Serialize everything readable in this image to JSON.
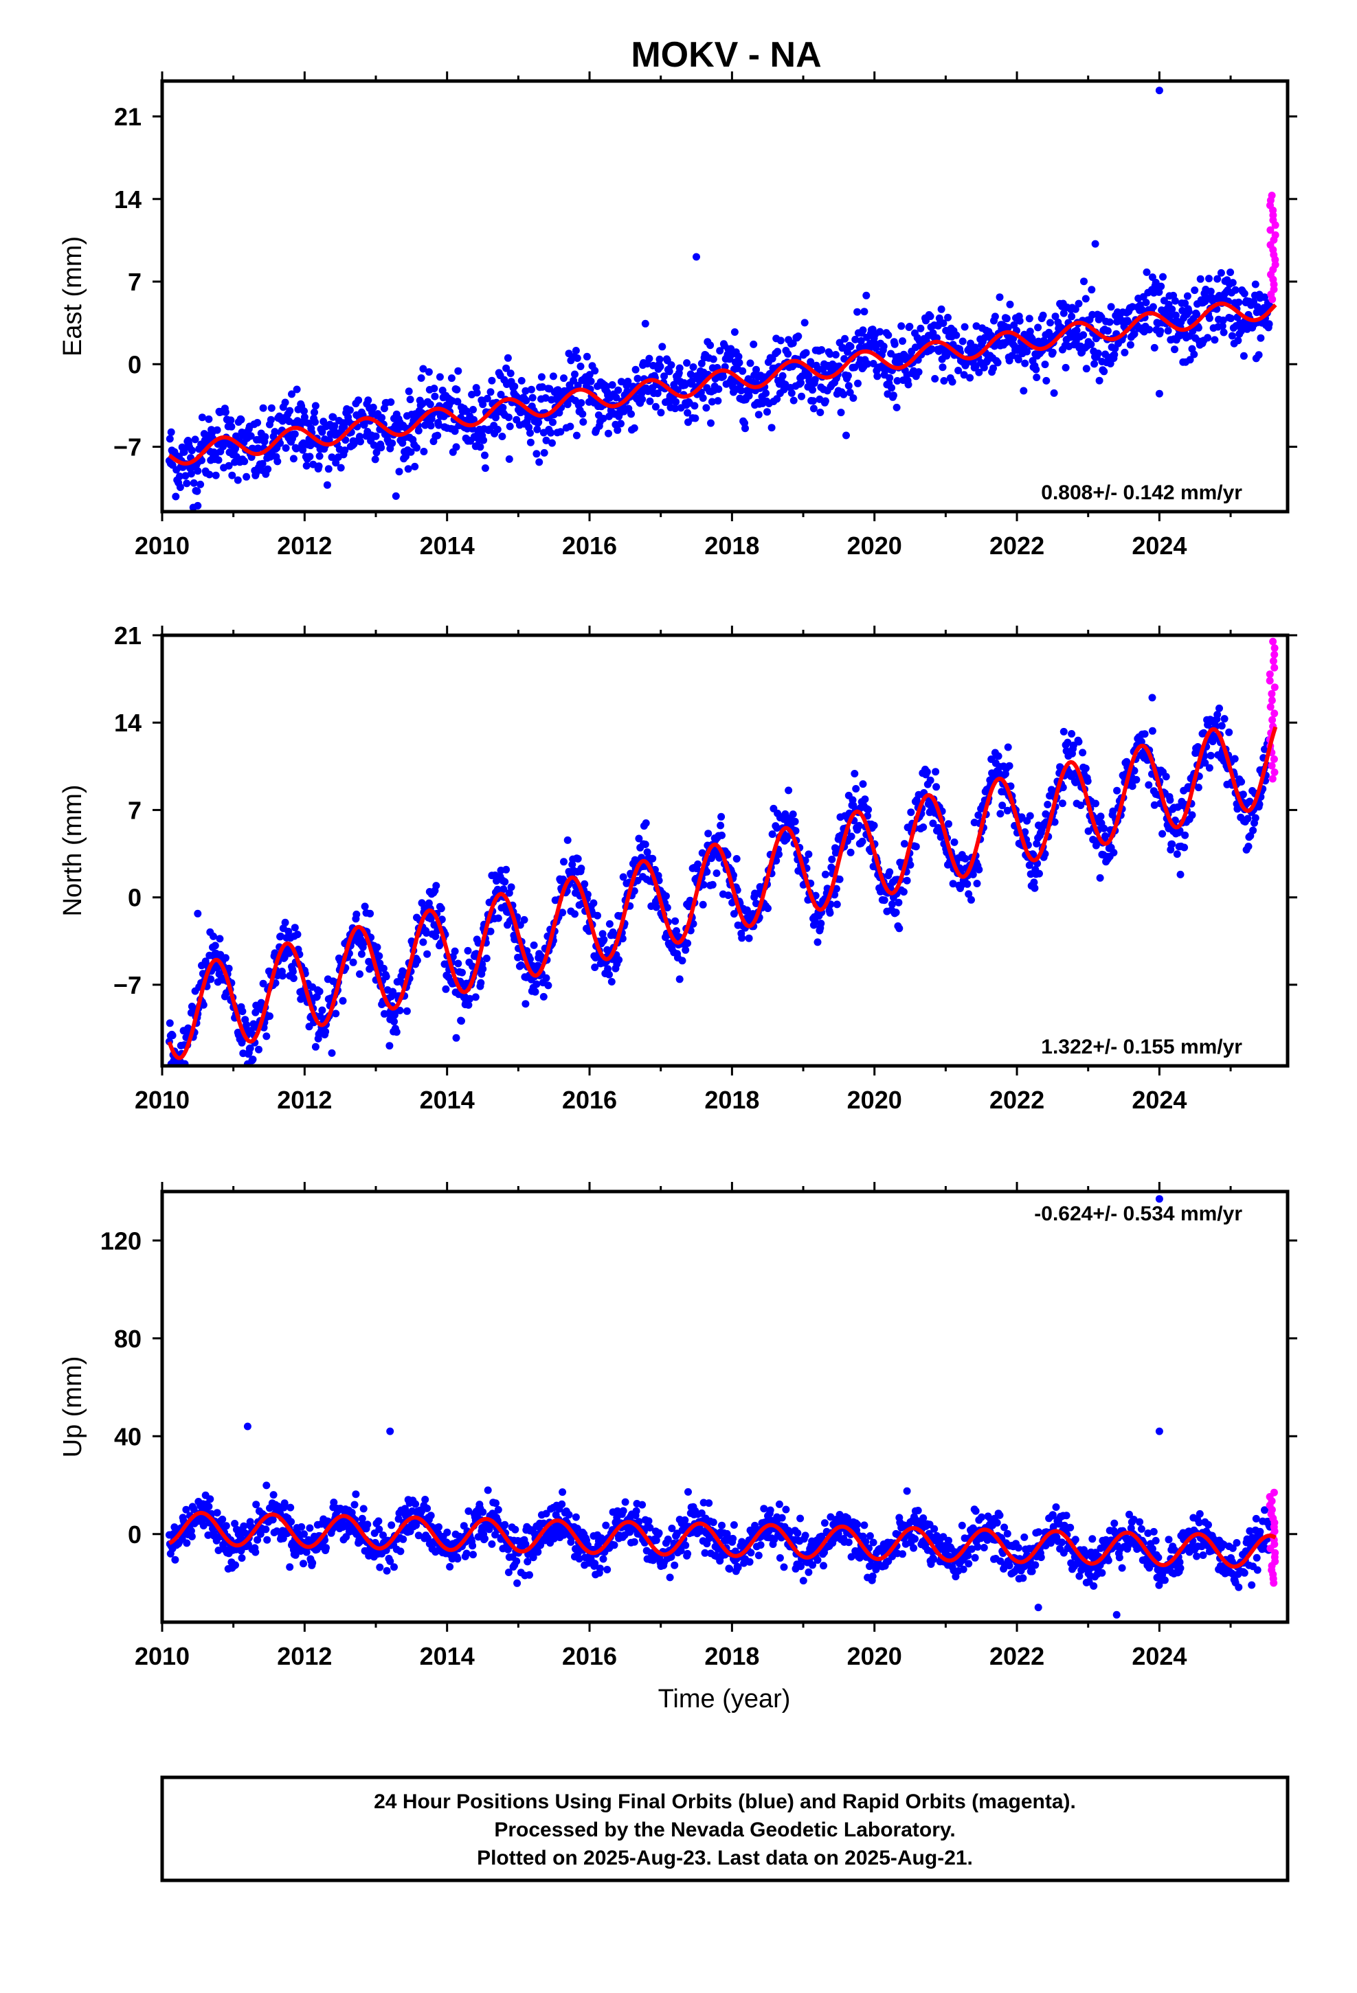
{
  "title": "MOKV - NA",
  "x_tick_labels": [
    "2010",
    "2012",
    "2014",
    "2016",
    "2018",
    "2020",
    "2022",
    "2024"
  ],
  "x_axis_label": "Time (year)",
  "footer": {
    "line1": "24 Hour Positions Using Final Orbits (blue) and Rapid Orbits (magenta).",
    "line2": "Processed by the Nevada Geodetic Laboratory.",
    "line3": "Plotted on 2025-Aug-23. Last data on 2025-Aug-21."
  },
  "colors": {
    "final_orbits": "#0000ff",
    "rapid_orbits": "#ff00ff",
    "model_fit": "#ff0000",
    "frame": "#000000"
  },
  "chart_data": [
    {
      "type": "scatter",
      "panel": "east",
      "ylabel": "East (mm)",
      "xlim": [
        2010.0,
        2025.8
      ],
      "ylim": [
        -12.5,
        24.0
      ],
      "yticks": [
        -7,
        0,
        7,
        14,
        21
      ],
      "ytick_labels": [
        "−7",
        "0",
        "7",
        "14",
        "21"
      ],
      "rate_text": "0.808+/- 0.142 mm/yr",
      "rate_position": "bottom-right",
      "trend": {
        "value_at_start": -7.8,
        "rate": 0.81,
        "seasonal_amplitude": 0.9,
        "scatter": 1.5,
        "phase_year": 0.6
      },
      "final_series_range": [
        2010.1,
        2025.55
      ],
      "rapid_series_range": [
        2025.55,
        2025.63
      ],
      "rapid_values_range": [
        5.5,
        14.3
      ],
      "outliers": [
        {
          "x": 2024.0,
          "y": 23.2
        },
        {
          "x": 2017.5,
          "y": 9.1
        },
        {
          "x": 2023.1,
          "y": 10.2
        },
        {
          "x": 2024.0,
          "y": -2.5
        },
        {
          "x": 2010.5,
          "y": -12.0
        }
      ]
    },
    {
      "type": "scatter",
      "panel": "north",
      "ylabel": "North (mm)",
      "xlim": [
        2010.0,
        2025.8
      ],
      "ylim": [
        -13.5,
        21.0
      ],
      "yticks": [
        -7,
        0,
        7,
        14,
        21
      ],
      "ytick_labels": [
        "−7",
        "0",
        "7",
        "14",
        "21"
      ],
      "rate_text": "1.322+/- 0.155 mm/yr",
      "rate_position": "bottom-right",
      "trend": {
        "value_at_start": -9.6,
        "rate": 1.32,
        "seasonal_amplitude": 3.6,
        "scatter": 1.2,
        "phase_year": 0.5
      },
      "final_series_range": [
        2010.1,
        2025.55
      ],
      "rapid_series_range": [
        2025.55,
        2025.63
      ],
      "rapid_values_range": [
        9.5,
        20.5
      ],
      "outliers": [
        {
          "x": 2010.5,
          "y": -1.3
        },
        {
          "x": 2023.9,
          "y": 16.0
        }
      ]
    },
    {
      "type": "scatter",
      "panel": "up",
      "ylabel": "Up (mm)",
      "xlim": [
        2010.0,
        2025.8
      ],
      "ylim": [
        -36.0,
        140.0
      ],
      "yticks": [
        0,
        40,
        80,
        120
      ],
      "ytick_labels": [
        "0",
        "40",
        "80",
        "120"
      ],
      "rate_text": "-0.624+/- 0.534 mm/yr",
      "rate_position": "top-right",
      "trend": {
        "value_at_start": 2.5,
        "rate": -0.62,
        "seasonal_amplitude": 6.5,
        "scatter": 4.5,
        "phase_year": 0.3
      },
      "final_series_range": [
        2010.1,
        2025.55
      ],
      "rapid_series_range": [
        2025.55,
        2025.63
      ],
      "rapid_values_range": [
        -20.0,
        17.0
      ],
      "outliers": [
        {
          "x": 2024.0,
          "y": 137.0
        },
        {
          "x": 2011.2,
          "y": 44.0
        },
        {
          "x": 2013.2,
          "y": 42.0
        },
        {
          "x": 2024.0,
          "y": 42.0
        },
        {
          "x": 2023.4,
          "y": -33.0
        },
        {
          "x": 2022.3,
          "y": -30.0
        }
      ]
    }
  ]
}
